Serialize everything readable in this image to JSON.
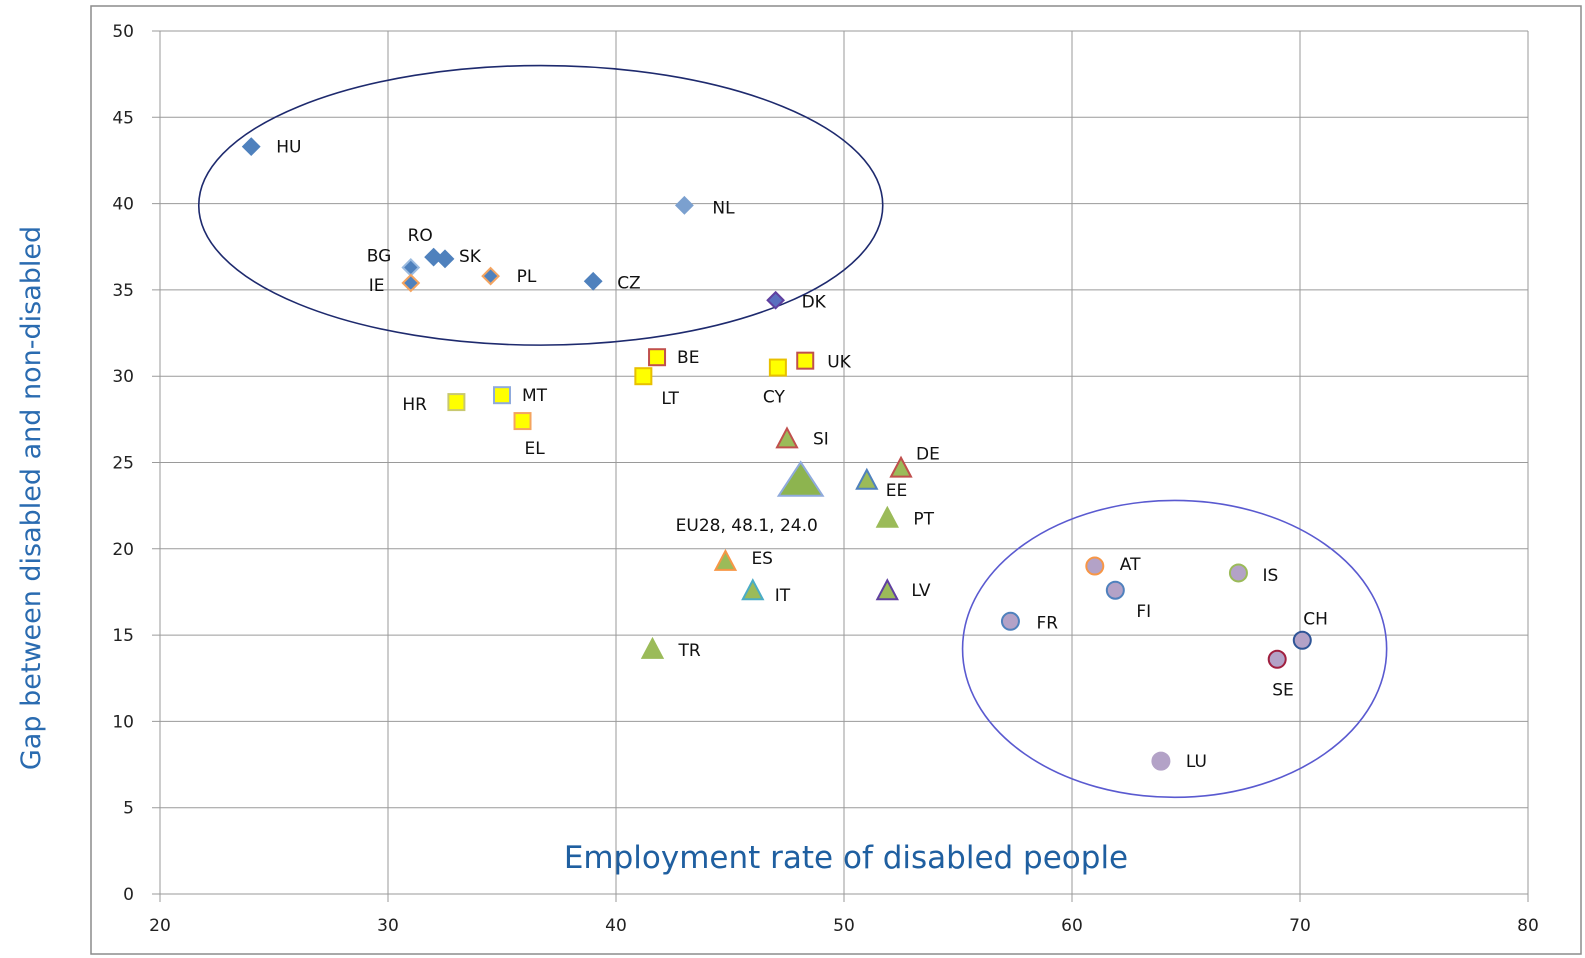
{
  "colors": {
    "grid": "#9a9a9a",
    "frame": "#8c8c8c",
    "axis_title": "#2a6bb0",
    "ellipse_top": "#1e2a6e",
    "ellipse_bottom": "#5a5ad0"
  },
  "chart_data": {
    "type": "scatter",
    "title": "",
    "xlabel": "Employment rate of disabled people",
    "ylabel": "Gap between disabled and non-disabled",
    "xlim": [
      20,
      80
    ],
    "ylim": [
      0,
      50
    ],
    "xticks": [
      "20",
      "30",
      "40",
      "50",
      "60",
      "70",
      "80"
    ],
    "yticks": [
      "0",
      "5",
      "10",
      "15",
      "20",
      "25",
      "30",
      "35",
      "40",
      "45",
      "50"
    ],
    "grid": true,
    "legend": "none",
    "groups": [
      {
        "shape": "diamond",
        "fill": "#4f81bd",
        "stroke": "#4f81bd"
      },
      {
        "shape": "square",
        "fill": "#ffff00",
        "stroke": "#c0504d"
      },
      {
        "shape": "triangle",
        "fill": "#9bbb59",
        "stroke": "#c0504d"
      },
      {
        "shape": "circle",
        "fill": "#b3a2c7",
        "stroke": "#4f81bd"
      }
    ],
    "points": [
      {
        "label": "HU",
        "x": 24.0,
        "y": 43.3,
        "shape": "diamond",
        "fill": "#4f81bd",
        "stroke": "#4f81bd",
        "lx": 25,
        "ly": 0
      },
      {
        "label": "NL",
        "x": 43.0,
        "y": 39.9,
        "shape": "diamond",
        "fill": "#7ba0cf",
        "stroke": "#7ba0cf",
        "lx": 28,
        "ly": 2
      },
      {
        "label": "BG",
        "x": 31.0,
        "y": 36.3,
        "shape": "diamond",
        "fill": "#4f81bd",
        "stroke": "#9bbbe0",
        "lx": -44,
        "ly": -12
      },
      {
        "label": "RO",
        "x": 32.0,
        "y": 36.9,
        "shape": "diamond",
        "fill": "#4f81bd",
        "stroke": "#4f81bd",
        "lx": -26,
        "ly": -22
      },
      {
        "label": "SK",
        "x": 32.5,
        "y": 36.8,
        "shape": "diamond",
        "fill": "#4f81bd",
        "stroke": "#4f81bd",
        "lx": 14,
        "ly": -3
      },
      {
        "label": "IE",
        "x": 31.0,
        "y": 35.4,
        "shape": "diamond",
        "fill": "#4f81bd",
        "stroke": "#f4a460",
        "lx": -42,
        "ly": 2
      },
      {
        "label": "PL",
        "x": 34.5,
        "y": 35.8,
        "shape": "diamond",
        "fill": "#4f81bd",
        "stroke": "#f4a460",
        "lx": 26,
        "ly": 0
      },
      {
        "label": "CZ",
        "x": 39.0,
        "y": 35.5,
        "shape": "diamond",
        "fill": "#4f81bd",
        "stroke": "#4f81bd",
        "lx": 24,
        "ly": 1
      },
      {
        "label": "DK",
        "x": 47.0,
        "y": 34.4,
        "shape": "diamond",
        "fill": "#5a6fbf",
        "stroke": "#6040a0",
        "lx": 26,
        "ly": 1
      },
      {
        "label": "BE",
        "x": 41.8,
        "y": 31.1,
        "shape": "square",
        "fill": "#ffff00",
        "stroke": "#c0504d",
        "lx": 20,
        "ly": 0
      },
      {
        "label": "UK",
        "x": 48.3,
        "y": 30.9,
        "shape": "square",
        "fill": "#ffff00",
        "stroke": "#c0504d",
        "lx": 22,
        "ly": 1
      },
      {
        "label": "LT",
        "x": 41.2,
        "y": 30.0,
        "shape": "square",
        "fill": "#ffff00",
        "stroke": "#e8c000",
        "lx": 18,
        "ly": 22
      },
      {
        "label": "CY",
        "x": 47.1,
        "y": 30.5,
        "shape": "square",
        "fill": "#ffff00",
        "stroke": "#e8c000",
        "lx": -15,
        "ly": 29
      },
      {
        "label": "HR",
        "x": 33.0,
        "y": 28.5,
        "shape": "square",
        "fill": "#ffff00",
        "stroke": "#c8c870",
        "lx": -54,
        "ly": 2
      },
      {
        "label": "MT",
        "x": 35.0,
        "y": 28.9,
        "shape": "square",
        "fill": "#ffff00",
        "stroke": "#8faadc",
        "lx": 20,
        "ly": 0
      },
      {
        "label": "EL",
        "x": 35.9,
        "y": 27.4,
        "shape": "square",
        "fill": "#ffff00",
        "stroke": "#f4a460",
        "lx": 2,
        "ly": 27
      },
      {
        "label": "SI",
        "x": 47.5,
        "y": 26.4,
        "shape": "triangle",
        "fill": "#9bbb59",
        "stroke": "#c0504d",
        "lx": 26,
        "ly": 0
      },
      {
        "label": "DE",
        "x": 52.5,
        "y": 24.7,
        "shape": "triangle",
        "fill": "#9bbb59",
        "stroke": "#c0504d",
        "lx": 15,
        "ly": -14
      },
      {
        "label": "EU28, 48.1, 24.0",
        "x": 48.1,
        "y": 24.0,
        "shape": "triangle",
        "fill": "#8db44f",
        "stroke": "#8faadc",
        "size": "large",
        "lx": -125,
        "ly": 45
      },
      {
        "label": "EE",
        "x": 51.0,
        "y": 24.0,
        "shape": "triangle",
        "fill": "#9bbb59",
        "stroke": "#4f81bd",
        "lx": 19,
        "ly": 10
      },
      {
        "label": "PT",
        "x": 51.9,
        "y": 21.8,
        "shape": "triangle",
        "fill": "#9bbb59",
        "stroke": "#9bbb59",
        "lx": 26,
        "ly": 1
      },
      {
        "label": "ES",
        "x": 44.8,
        "y": 19.3,
        "shape": "triangle",
        "fill": "#9bbb59",
        "stroke": "#f79646",
        "lx": 26,
        "ly": -3
      },
      {
        "label": "IT",
        "x": 46.0,
        "y": 17.6,
        "shape": "triangle",
        "fill": "#9bbb59",
        "stroke": "#4bacc6",
        "lx": 22,
        "ly": 5
      },
      {
        "label": "LV",
        "x": 51.9,
        "y": 17.6,
        "shape": "triangle",
        "fill": "#9bbb59",
        "stroke": "#6040a0",
        "lx": 24,
        "ly": 0
      },
      {
        "label": "TR",
        "x": 41.6,
        "y": 14.2,
        "shape": "triangle",
        "fill": "#9bbb59",
        "stroke": "#9bbb59",
        "lx": 26,
        "ly": 1
      },
      {
        "label": "AT",
        "x": 61.0,
        "y": 19.0,
        "shape": "circle",
        "fill": "#b3a2c7",
        "stroke": "#f79646",
        "lx": 25,
        "ly": -2
      },
      {
        "label": "IS",
        "x": 67.3,
        "y": 18.6,
        "shape": "circle",
        "fill": "#b3a2c7",
        "stroke": "#9bbb59",
        "lx": 24,
        "ly": 2
      },
      {
        "label": "FI",
        "x": 61.9,
        "y": 17.6,
        "shape": "circle",
        "fill": "#b3a2c7",
        "stroke": "#4f81bd",
        "lx": 21,
        "ly": 21
      },
      {
        "label": "FR",
        "x": 57.3,
        "y": 15.8,
        "shape": "circle",
        "fill": "#b3a2c7",
        "stroke": "#4f81bd",
        "lx": 26,
        "ly": 1
      },
      {
        "label": "CH",
        "x": 70.1,
        "y": 14.7,
        "shape": "circle",
        "fill": "#b3a2c7",
        "stroke": "#2f5597",
        "lx": 1,
        "ly": -22
      },
      {
        "label": "SE",
        "x": 69.0,
        "y": 13.6,
        "shape": "circle",
        "fill": "#b3a2c7",
        "stroke": "#a02040",
        "lx": -5,
        "ly": 30
      },
      {
        "label": "LU",
        "x": 63.9,
        "y": 7.7,
        "shape": "circle",
        "fill": "#b3a2c7",
        "stroke": "#b3a2c7",
        "lx": 25,
        "ly": 0
      }
    ],
    "annotations": [
      {
        "type": "ellipse",
        "cx": 36.7,
        "cy": 39.9,
        "rx": 15.0,
        "ry": 8.1,
        "color": "#1e2a6e"
      },
      {
        "type": "ellipse",
        "cx": 64.5,
        "cy": 14.2,
        "rx": 9.3,
        "ry": 8.6,
        "color": "#5a5ad0"
      }
    ]
  }
}
